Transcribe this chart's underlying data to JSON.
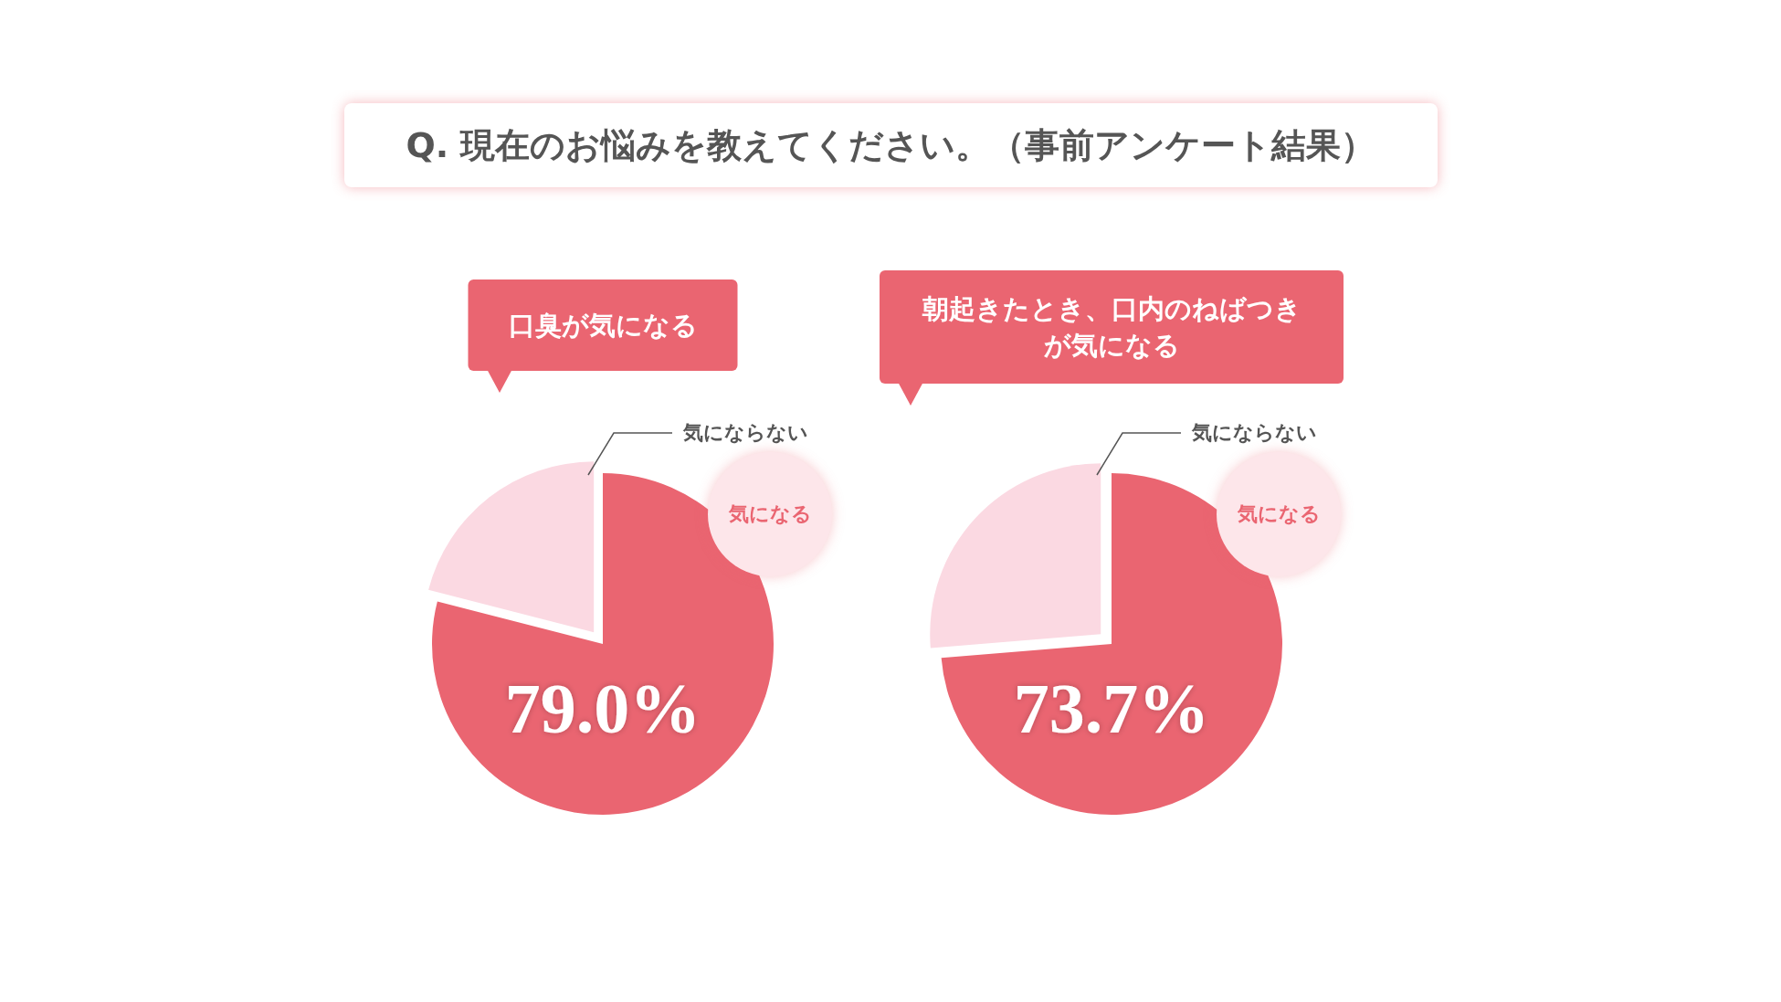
{
  "chart_data": [
    {
      "type": "other",
      "title": "Q. 現在のお悩みを教えてください。（事前アンケート結果）"
    },
    {
      "type": "pie",
      "title": "口臭が気になる",
      "categories": [
        "気になる",
        "気にならない"
      ],
      "values": [
        79.0,
        21.0
      ],
      "colors": [
        "#ea6571",
        "#fbd9e2"
      ],
      "value_labels": [
        "79.0%",
        null
      ],
      "legend": false
    },
    {
      "type": "pie",
      "title": "朝起きたとき、口内のねばつきが気になる",
      "categories": [
        "気になる",
        "気にならない"
      ],
      "values": [
        73.7,
        26.3
      ],
      "colors": [
        "#ea6571",
        "#fbd9e2"
      ],
      "value_labels": [
        "73.7%",
        null
      ],
      "legend": false
    }
  ]
}
